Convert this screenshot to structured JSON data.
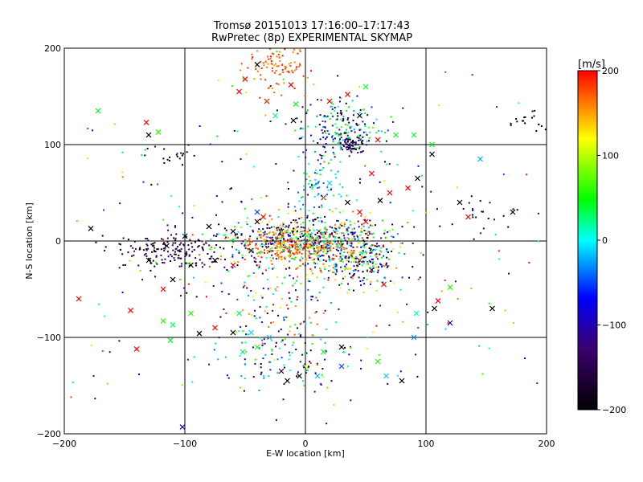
{
  "chart_data": {
    "type": "scatter",
    "title": "Tromsø 20151013 17:16:00–17:17:43",
    "subtitle": "RwPretec (8p) EXPERIMENTAL SKYMAP",
    "xlabel": "E-W location [km]",
    "ylabel": "N-S location [km]",
    "xlim": [
      -200,
      200
    ],
    "ylim": [
      -200,
      200
    ],
    "xticks": [
      -200,
      -100,
      0,
      100,
      200
    ],
    "yticks": [
      -200,
      -100,
      0,
      100,
      200
    ],
    "xtick_labels": [
      "−200",
      "−100",
      "0",
      "100",
      "200"
    ],
    "ytick_labels": [
      "−200",
      "−100",
      "0",
      "100",
      "200"
    ],
    "grid": true,
    "colorbar": {
      "label": "[m/s]",
      "ticks": [
        200,
        100,
        0,
        -100,
        -200
      ],
      "tick_labels": [
        "200",
        "100",
        "0",
        "−100",
        "−200"
      ],
      "range": [
        -200,
        200
      ],
      "stops": [
        "#000000",
        "#3c006e",
        "#0000ff",
        "#00ffff",
        "#00ff00",
        "#ffff00",
        "#ff0000"
      ]
    },
    "series": [
      {
        "marker": "x",
        "points": [
          [
            -172,
            135,
            40
          ],
          [
            -122,
            113,
            60
          ],
          [
            -132,
            123,
            200
          ],
          [
            -130,
            110,
            -200
          ],
          [
            -178,
            13,
            -200
          ],
          [
            -188,
            -60,
            200
          ],
          [
            -140,
            -112,
            200
          ],
          [
            -118,
            -50,
            200
          ],
          [
            -118,
            -83,
            60
          ],
          [
            -110,
            -87,
            30
          ],
          [
            -112,
            -103,
            40
          ],
          [
            -95,
            -75,
            60
          ],
          [
            -75,
            -90,
            200
          ],
          [
            -88,
            -96,
            -200
          ],
          [
            -60,
            -95,
            -200
          ],
          [
            -55,
            -75,
            30
          ],
          [
            -45,
            -95,
            -10
          ],
          [
            -40,
            -110,
            60
          ],
          [
            -30,
            -100,
            -10
          ],
          [
            -52,
            -115,
            30
          ],
          [
            -20,
            -135,
            -150
          ],
          [
            -15,
            -145,
            -200
          ],
          [
            -5,
            -140,
            -200
          ],
          [
            0,
            -130,
            120
          ],
          [
            10,
            -140,
            -20
          ],
          [
            30,
            -110,
            -200
          ],
          [
            60,
            -125,
            60
          ],
          [
            67,
            -140,
            -10
          ],
          [
            80,
            -145,
            -200
          ],
          [
            90,
            -100,
            -30
          ],
          [
            -145,
            -72,
            200
          ],
          [
            -102,
            -193,
            -100
          ],
          [
            -12,
            162,
            200
          ],
          [
            -50,
            168,
            200
          ],
          [
            -40,
            183,
            -200
          ],
          [
            -55,
            155,
            200
          ],
          [
            -32,
            145,
            200
          ],
          [
            -8,
            142,
            40
          ],
          [
            -25,
            130,
            20
          ],
          [
            -10,
            125,
            -200
          ],
          [
            20,
            145,
            200
          ],
          [
            35,
            152,
            200
          ],
          [
            50,
            160,
            40
          ],
          [
            45,
            130,
            -200
          ],
          [
            60,
            105,
            200
          ],
          [
            75,
            110,
            40
          ],
          [
            90,
            110,
            40
          ],
          [
            105,
            100,
            40
          ],
          [
            105,
            90,
            -200
          ],
          [
            93,
            65,
            -200
          ],
          [
            55,
            70,
            200
          ],
          [
            70,
            50,
            200
          ],
          [
            85,
            55,
            200
          ],
          [
            128,
            40,
            -200
          ],
          [
            135,
            25,
            200
          ],
          [
            145,
            85,
            -20
          ],
          [
            172,
            30,
            -200
          ],
          [
            155,
            -70,
            -200
          ],
          [
            120,
            -85,
            -100
          ],
          [
            110,
            -62,
            200
          ],
          [
            107,
            -70,
            -200
          ],
          [
            120,
            -48,
            60
          ],
          [
            92,
            -75,
            10
          ],
          [
            30,
            -130,
            -50
          ],
          [
            15,
            -115,
            40
          ],
          [
            0,
            -5,
            200
          ],
          [
            -20,
            10,
            -200
          ],
          [
            -40,
            20,
            -200
          ],
          [
            -60,
            10,
            -200
          ],
          [
            -80,
            15,
            -200
          ],
          [
            -100,
            5,
            -200
          ],
          [
            -115,
            -5,
            -200
          ],
          [
            -130,
            -20,
            -200
          ],
          [
            -95,
            -25,
            -200
          ],
          [
            -75,
            -20,
            -200
          ],
          [
            -110,
            -40,
            -200
          ],
          [
            -60,
            -25,
            200
          ],
          [
            -45,
            -10,
            -200
          ],
          [
            30,
            -5,
            200
          ],
          [
            45,
            -20,
            200
          ],
          [
            55,
            -30,
            -200
          ],
          [
            65,
            -45,
            200
          ],
          [
            45,
            30,
            200
          ],
          [
            50,
            20,
            200
          ],
          [
            35,
            40,
            -200
          ],
          [
            62,
            42,
            -200
          ],
          [
            15,
            45,
            200
          ],
          [
            20,
            60,
            -10
          ],
          [
            -40,
            30,
            -50
          ],
          [
            -35,
            25,
            200
          ]
        ]
      },
      {
        "marker": "dot",
        "clusters": [
          {
            "x": -25,
            "y": 185,
            "sx": 14,
            "sy": 15,
            "n": 110,
            "vmin": 150,
            "vmax": 200
          },
          {
            "x": 30,
            "y": 118,
            "sx": 16,
            "sy": 14,
            "n": 190,
            "vmin": -200,
            "vmax": 80
          },
          {
            "x": 38,
            "y": 100,
            "sx": 6,
            "sy": 5,
            "n": 70,
            "vmin": -200,
            "vmax": -100
          },
          {
            "x": 0,
            "y": 0,
            "sx": 35,
            "sy": 13,
            "n": 720,
            "vmin": -200,
            "vmax": 200
          },
          {
            "x": -10,
            "y": -8,
            "sx": 18,
            "sy": 9,
            "n": 160,
            "vmin": 140,
            "vmax": 200
          },
          {
            "x": 42,
            "y": -22,
            "sx": 16,
            "sy": 12,
            "n": 200,
            "vmin": -200,
            "vmax": 200
          },
          {
            "x": -110,
            "y": -10,
            "sx": 24,
            "sy": 10,
            "n": 170,
            "vmin": -200,
            "vmax": -120
          },
          {
            "x": 10,
            "y": 55,
            "sx": 10,
            "sy": 18,
            "n": 70,
            "vmin": -50,
            "vmax": 50
          },
          {
            "x": -30,
            "y": -60,
            "sx": 25,
            "sy": 25,
            "n": 110,
            "vmin": -200,
            "vmax": 200
          },
          {
            "x": -20,
            "y": -125,
            "sx": 30,
            "sy": 18,
            "n": 110,
            "vmin": -200,
            "vmax": 80
          },
          {
            "x": 0,
            "y": 0,
            "sx": 110,
            "sy": 95,
            "n": 280,
            "vmin": -200,
            "vmax": 200
          },
          {
            "x": 185,
            "y": 125,
            "sx": 8,
            "sy": 7,
            "n": 18,
            "vmin": -200,
            "vmax": -190
          },
          {
            "x": -105,
            "y": 88,
            "sx": 12,
            "sy": 5,
            "n": 18,
            "vmin": -200,
            "vmax": -180
          },
          {
            "x": 150,
            "y": 28,
            "sx": 15,
            "sy": 10,
            "n": 20,
            "vmin": -200,
            "vmax": -150
          }
        ]
      }
    ]
  }
}
